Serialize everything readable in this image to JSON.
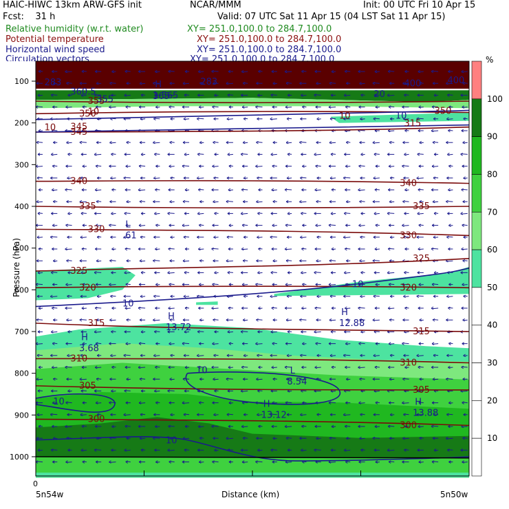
{
  "header": {
    "line1_left": "HAIC-HIWC 13km ARW-GFS init",
    "line1_mid": "NCAR/MMM",
    "line1_right": "Init: 00 UTC Fri 10 Apr 15",
    "line2_left": "Fcst:    31 h",
    "line2_right": "Valid: 07 UTC Sat 11 Apr 15 (04 LST Sat 11 Apr 15)",
    "fields": [
      {
        "name": "Relative humidity (w.r.t. water)",
        "xy": "XY= 251.0,100.0 to 284.7,100.0",
        "color": "#1f8a1f"
      },
      {
        "name": "Potential temperature",
        "xy": "XY= 251.0,100.0 to 284.7,100.0",
        "color": "#8b1010"
      },
      {
        "name": "Horizontal wind speed",
        "xy": "XY= 251.0,100.0 to 284.7,100.0",
        "color": "#1a1a8c"
      },
      {
        "name": "Circulation vectors",
        "xy": "XY= 251.0,100.0 to 284.7,100.0",
        "color": "#1a1a8c"
      }
    ]
  },
  "chart_data": {
    "type": "heatmap",
    "ylabel": "Pressure (hPa)",
    "xlabel": "Distance (km)",
    "y_ticks": [
      100,
      200,
      300,
      400,
      500,
      600,
      700,
      800,
      900,
      1000
    ],
    "ylim": [
      1050,
      85
    ],
    "x_tick_first": "0",
    "x_left_label": "5n54w",
    "x_right_label": "5n50w",
    "colorbar": {
      "unit": "%",
      "levels": [
        10,
        20,
        30,
        40,
        50,
        60,
        70,
        80,
        90,
        100
      ],
      "bands": [
        {
          "from": 50,
          "to": 60,
          "color": "#4de3a0"
        },
        {
          "from": 60,
          "to": 70,
          "color": "#7ee87e"
        },
        {
          "from": 70,
          "to": 80,
          "color": "#3fd13f"
        },
        {
          "from": 80,
          "to": 90,
          "color": "#20b820"
        },
        {
          "from": 90,
          "to": 100,
          "color": "#167a16"
        },
        {
          "from": 100,
          "to": 110,
          "color": "#ff8080"
        }
      ]
    },
    "theta_contours": [
      {
        "label": "340",
        "p_left": 340,
        "p_right": 345
      },
      {
        "label": "335",
        "p_left": 400,
        "p_right": 400
      },
      {
        "label": "330",
        "p_left": 455,
        "p_right": 470
      },
      {
        "label": "325",
        "p_left": 555,
        "p_right": 525
      },
      {
        "label": "320",
        "p_left": 595,
        "p_right": 595
      },
      {
        "label": "315",
        "p_left": 680,
        "p_right": 700
      },
      {
        "label": "310",
        "p_left": 765,
        "p_right": 775
      },
      {
        "label": "305",
        "p_left": 830,
        "p_right": 840
      },
      {
        "label": "300",
        "p_left": 910,
        "p_right": 925
      },
      {
        "label": "345",
        "p_left": 222,
        "p_right": 210
      },
      {
        "label": "350",
        "p_left": 178,
        "p_right": 175
      },
      {
        "label": "355",
        "p_left": 148,
        "p_right": 148
      }
    ],
    "upper_labels": [
      "283",
      "283",
      "400",
      "400",
      "360.5",
      "365",
      "355",
      "20",
      "350",
      "345",
      "315",
      "10",
      "10",
      "10"
    ],
    "wind_labels": [
      "10",
      "10",
      "10",
      "10",
      "10",
      "10"
    ],
    "extrema": [
      {
        "kind": "L",
        "value": ".61"
      },
      {
        "kind": "H",
        "value": "13.72"
      },
      {
        "kind": "H",
        "value": "3.68"
      },
      {
        "kind": "H",
        "value": "12.88"
      },
      {
        "kind": "L",
        "value": "8.54"
      },
      {
        "kind": "H",
        "value": "13.12"
      },
      {
        "kind": "H",
        "value": "13.88"
      },
      {
        "kind": "H",
        "value": "1.565"
      }
    ],
    "grid": false,
    "legend": "right"
  }
}
